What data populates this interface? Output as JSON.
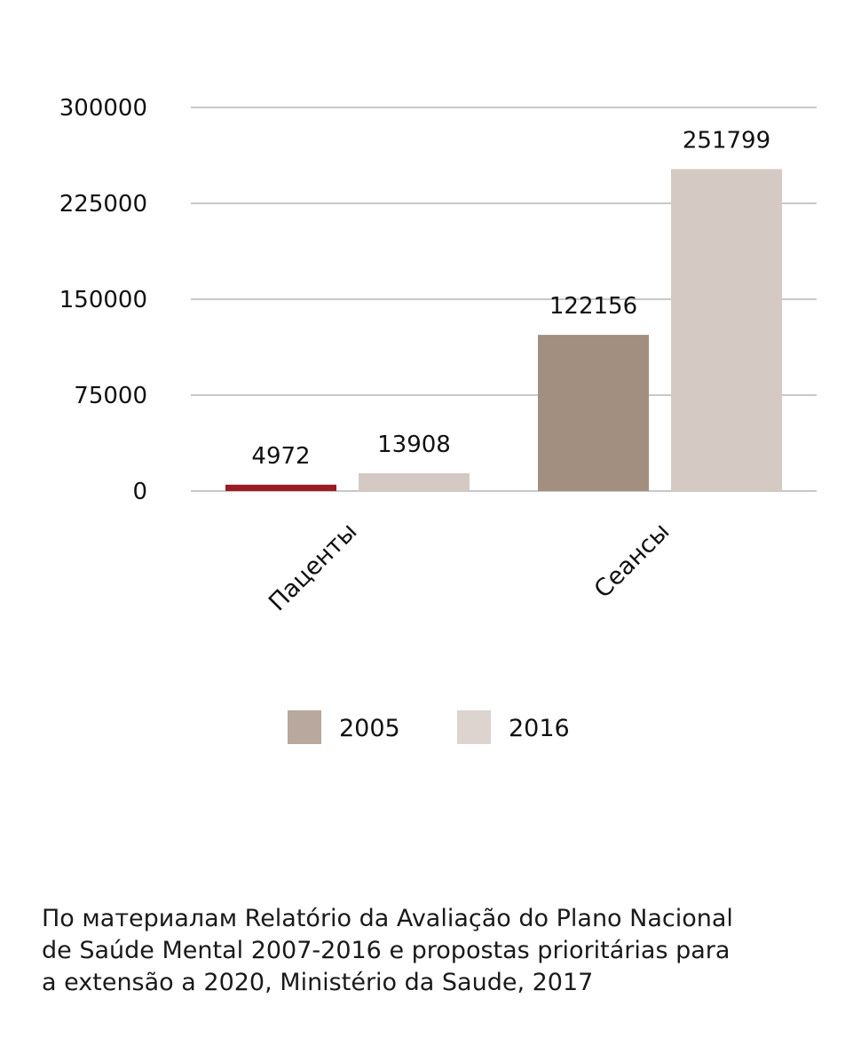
{
  "chart_data": {
    "type": "bar",
    "title": "",
    "xlabel": "",
    "ylabel": "",
    "ylim": [
      0,
      300000
    ],
    "yticks": [
      0,
      75000,
      150000,
      225000,
      300000
    ],
    "grid": true,
    "categories": [
      "Пацenты",
      "Сеансы"
    ],
    "series": [
      {
        "name": "2005",
        "values": [
          4972,
          122156
        ],
        "color": "#a38f80",
        "legend_color": "#b8a89d",
        "highlight": {
          "index": 0,
          "color": "#9b1c24"
        }
      },
      {
        "name": "2016",
        "values": [
          13908,
          251799
        ],
        "color": "#d5c9c4",
        "legend_color": "#ddd4cf"
      }
    ],
    "legend_position": "bottom-center",
    "gridline_color": "#b5b5b5"
  },
  "source_note": [
    "По материалам Relatório da Avaliação do Plano Nacional",
    "de Saúde Mental 2007-2016 e propostas prioritárias para",
    "a extensão a 2020, Ministério da Saude, 2017"
  ]
}
